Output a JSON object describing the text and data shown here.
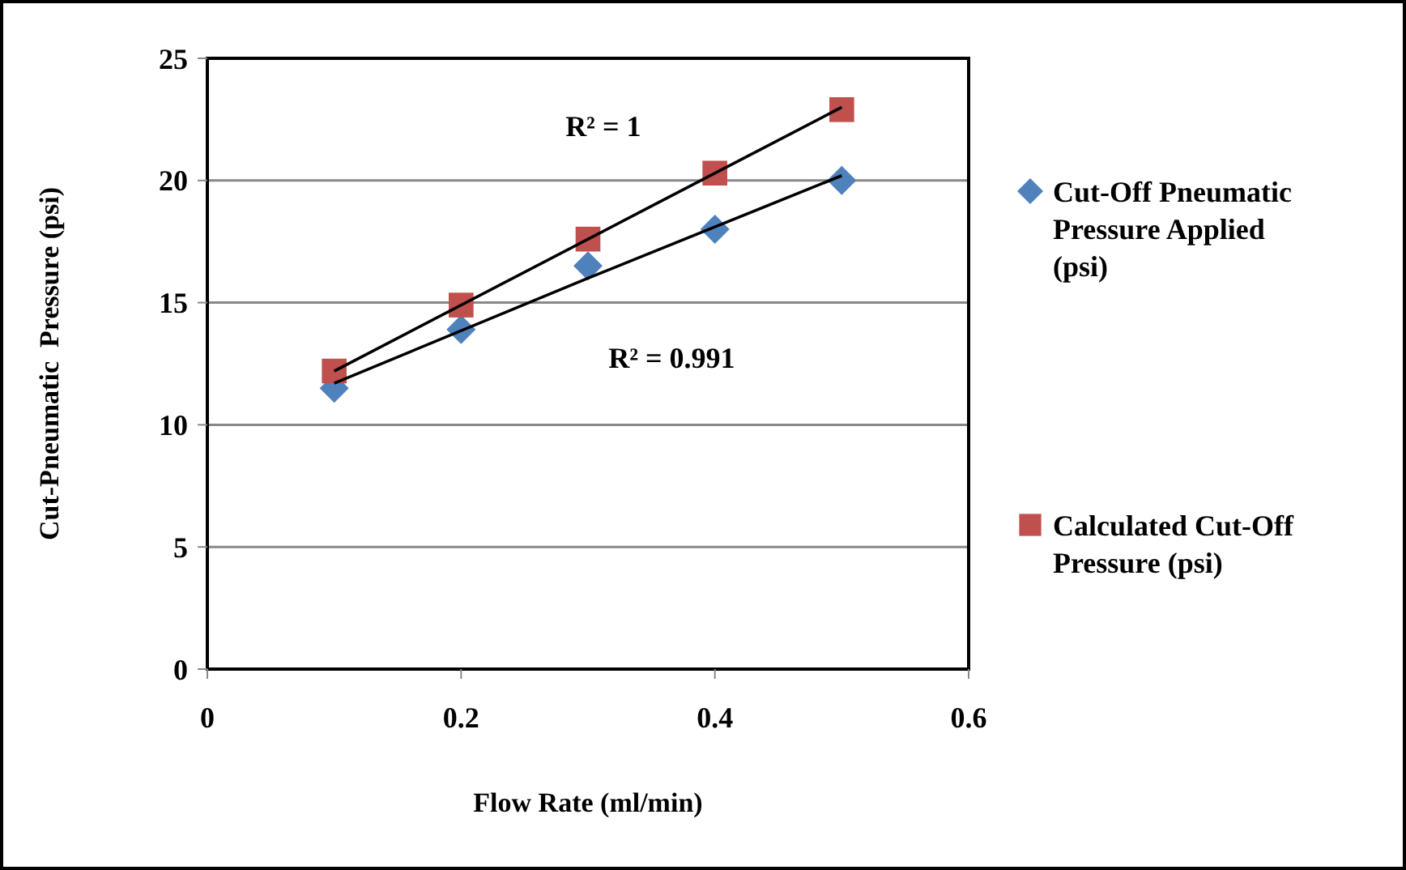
{
  "chart_data": {
    "type": "scatter",
    "xlabel": "Flow Rate (ml/min)",
    "ylabel": "Cut-Pneumatic  Pressure (psi)",
    "xlim": [
      0,
      0.6
    ],
    "xticks": [
      0,
      0.2,
      0.4,
      0.6
    ],
    "ylim": [
      0,
      25
    ],
    "yticks": [
      0,
      5,
      10,
      15,
      20,
      25
    ],
    "grid": "y",
    "legend": "right",
    "series": [
      {
        "name": "Cut-Off Pneumatic Pressure Applied (psi)",
        "color": "#4f81bd",
        "marker": "diamond",
        "x": [
          0.1,
          0.2,
          0.3,
          0.4,
          0.5
        ],
        "values": [
          11.5,
          13.9,
          16.5,
          18.0,
          20.0
        ]
      },
      {
        "name": "Calculated Cut-Off Pressure (psi)",
        "color": "#c0504d",
        "marker": "square",
        "x": [
          0.1,
          0.2,
          0.3,
          0.4,
          0.5
        ],
        "values": [
          12.2,
          14.9,
          17.6,
          20.3,
          22.9
        ]
      },
      {
        "type": "line",
        "color": "#000000",
        "x": [
          0.1,
          0.3,
          0.5
        ],
        "values": [
          11.7,
          16.0,
          20.2
        ]
      },
      {
        "type": "line",
        "color": "#000000",
        "x": [
          0.1,
          0.5
        ],
        "values": [
          12.2,
          23.0
        ]
      }
    ],
    "annotations": [
      "R² = 1",
      "R² = 0.991"
    ]
  }
}
